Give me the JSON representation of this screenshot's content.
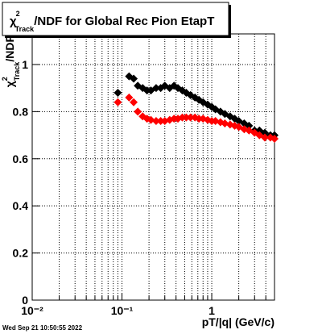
{
  "chart_data": {
    "type": "scatter",
    "title": {
      "symbol": "χ",
      "sup": "2",
      "sub": "Track",
      "text": "/NDF for Global Rec Pion EtapT"
    },
    "xlabel": "pT/|q| (GeV/c)",
    "ylabel": {
      "symbol": "χ",
      "sup": "2",
      "sub": "Track",
      "text": "/NDF"
    },
    "timestamp": "Wed Sep 21 10:50:55 2022",
    "xscale": "log",
    "grid": true,
    "xlim": [
      0.01,
      5
    ],
    "ylim": [
      0,
      1.13
    ],
    "xticks": [
      {
        "value": 0.01,
        "label": "10⁻²"
      },
      {
        "value": 0.1,
        "label": "10⁻¹"
      },
      1
    ],
    "xminorticks": [
      0.02,
      0.03,
      0.04,
      0.05,
      0.06,
      0.07,
      0.08,
      0.09,
      0.2,
      0.3,
      0.4,
      0.5,
      0.6,
      0.7,
      0.8,
      0.9,
      2,
      3,
      4,
      5
    ],
    "yticks": [
      0,
      0.2,
      0.4,
      0.6,
      0.8,
      1
    ],
    "x": [
      0.09,
      0.12,
      0.135,
      0.15,
      0.17,
      0.19,
      0.21,
      0.24,
      0.27,
      0.3,
      0.34,
      0.38,
      0.42,
      0.47,
      0.52,
      0.58,
      0.65,
      0.72,
      0.8,
      0.9,
      1.0,
      1.1,
      1.25,
      1.4,
      1.6,
      1.8,
      2.0,
      2.3,
      2.6,
      3.0,
      3.4,
      3.9,
      4.5,
      5.0
    ],
    "series": [
      {
        "color": "#000000",
        "values": [
          0.88,
          0.95,
          0.94,
          0.91,
          0.9,
          0.89,
          0.89,
          0.9,
          0.9,
          0.91,
          0.9,
          0.91,
          0.9,
          0.89,
          0.88,
          0.87,
          0.86,
          0.85,
          0.84,
          0.83,
          0.82,
          0.81,
          0.8,
          0.79,
          0.78,
          0.77,
          0.76,
          0.75,
          0.74,
          0.72,
          0.72,
          0.71,
          0.7,
          0.7
        ]
      },
      {
        "color": "#ff0000",
        "values": [
          0.84,
          0.86,
          0.84,
          0.8,
          0.78,
          0.77,
          0.765,
          0.76,
          0.76,
          0.76,
          0.765,
          0.77,
          0.77,
          0.775,
          0.775,
          0.775,
          0.775,
          0.77,
          0.77,
          0.765,
          0.76,
          0.76,
          0.755,
          0.75,
          0.745,
          0.74,
          0.735,
          0.725,
          0.72,
          0.71,
          0.7,
          0.69,
          0.69,
          0.685
        ]
      }
    ]
  }
}
